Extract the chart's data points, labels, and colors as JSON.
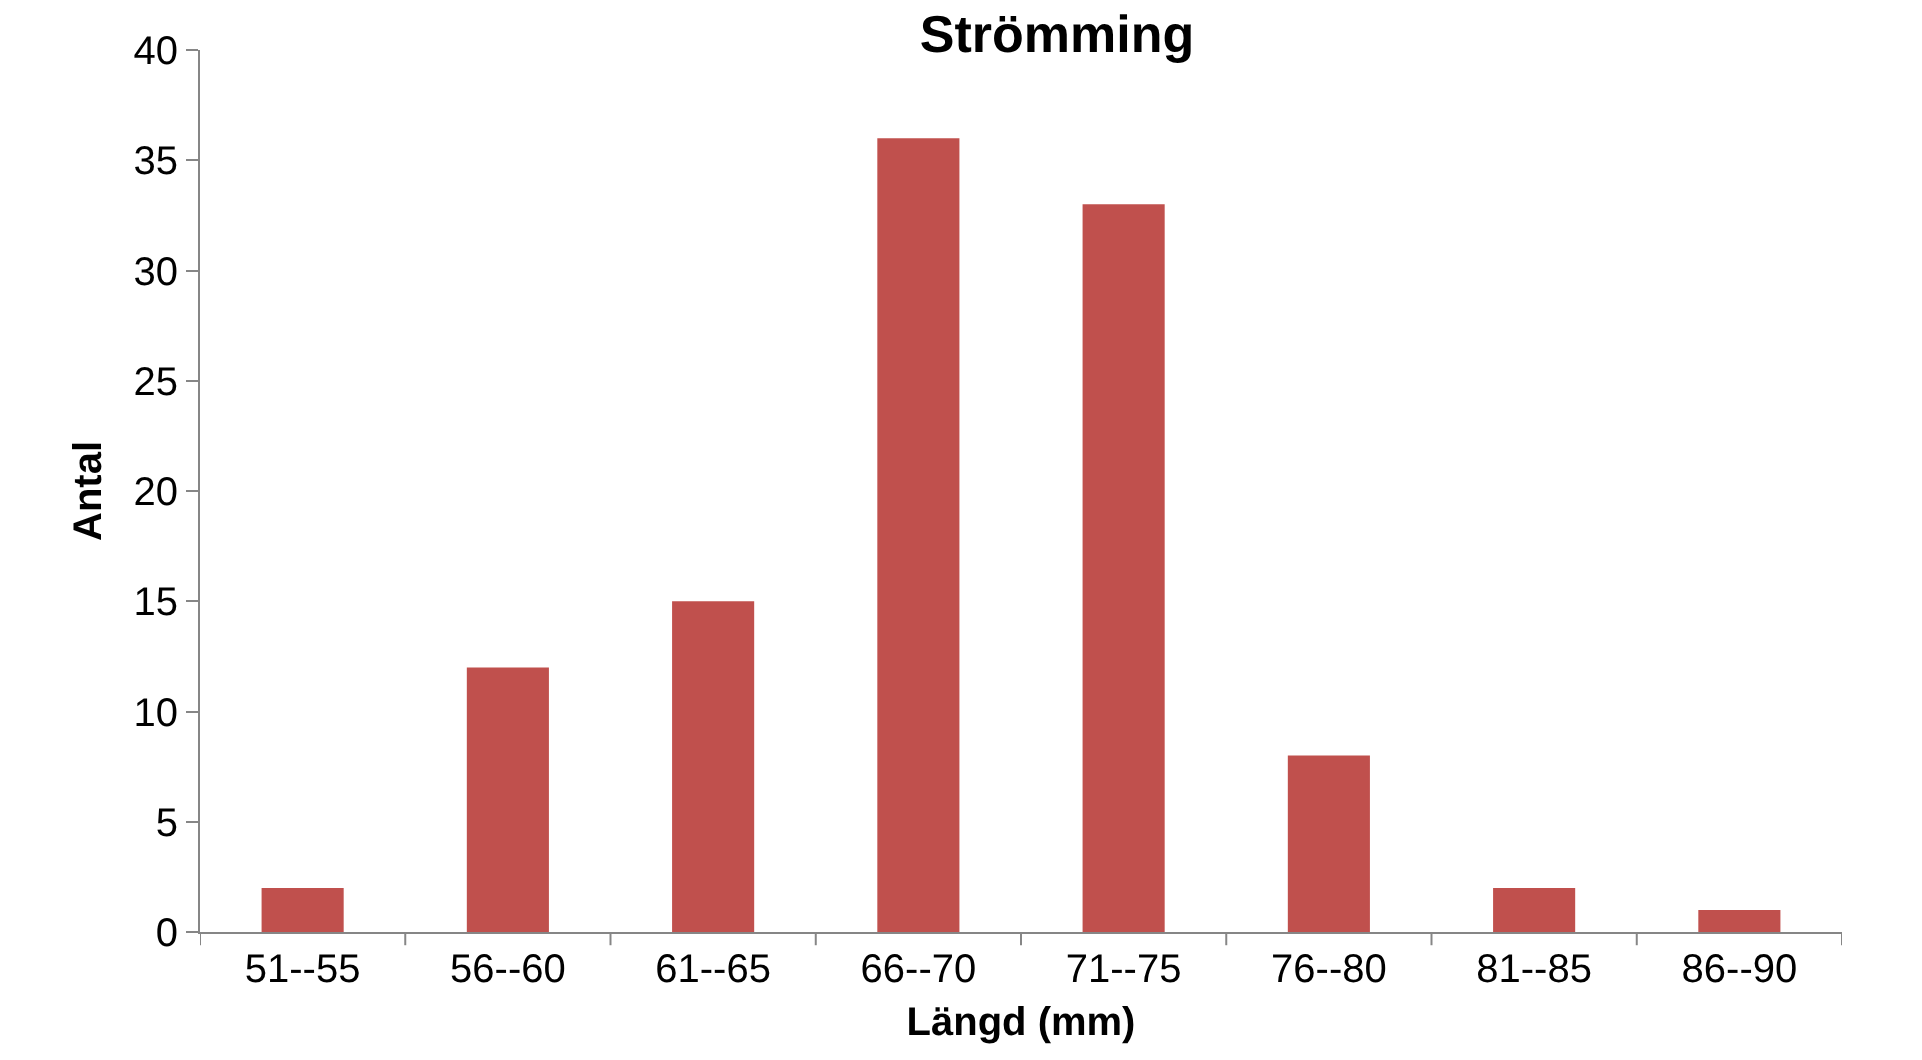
{
  "chart_data": {
    "type": "bar",
    "title": "Strömming",
    "xlabel": "Längd (mm)",
    "ylabel": "Antal",
    "categories": [
      "51--55",
      "56--60",
      "61--65",
      "66--70",
      "71--75",
      "76--80",
      "81--85",
      "86--90"
    ],
    "values": [
      2,
      12,
      15,
      36,
      33,
      8,
      2,
      1
    ],
    "color": "#c0504d",
    "ylim": [
      0,
      40
    ],
    "yticks": [
      0,
      5,
      10,
      15,
      20,
      25,
      30,
      35,
      40
    ],
    "grid": false,
    "legend": false
  }
}
